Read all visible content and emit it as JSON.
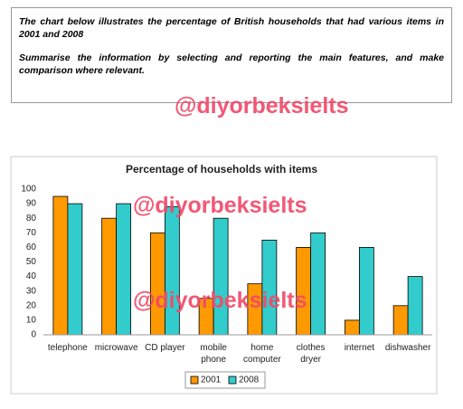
{
  "prompt": {
    "task": "The chart below illustrates the percentage of British households that had various items in 2001 and 2008",
    "instruction": "Summarise the information by selecting and reporting the main features, and make comparison where relevant."
  },
  "watermarks": [
    "@diyorbeksielts",
    "@diyorbeksielts",
    "@diyorbeksielts"
  ],
  "chart_data": {
    "type": "bar",
    "title": "Percentage of households with items",
    "categories": [
      "telephone",
      "microwave",
      "CD player",
      "mobile\nphone",
      "home\ncomputer",
      "clothes\ndryer",
      "internet",
      "dishwasher"
    ],
    "series": [
      {
        "name": "2001",
        "color": "#ff9900",
        "values": [
          95,
          80,
          70,
          25,
          35,
          60,
          10,
          20
        ]
      },
      {
        "name": "2008",
        "color": "#33cccc",
        "values": [
          90,
          90,
          88,
          80,
          65,
          70,
          60,
          40
        ]
      }
    ],
    "ylim": [
      0,
      100
    ],
    "yticks": [
      0,
      10,
      20,
      30,
      40,
      50,
      60,
      70,
      80,
      90,
      100
    ],
    "grid": false,
    "legend": "bottom"
  }
}
